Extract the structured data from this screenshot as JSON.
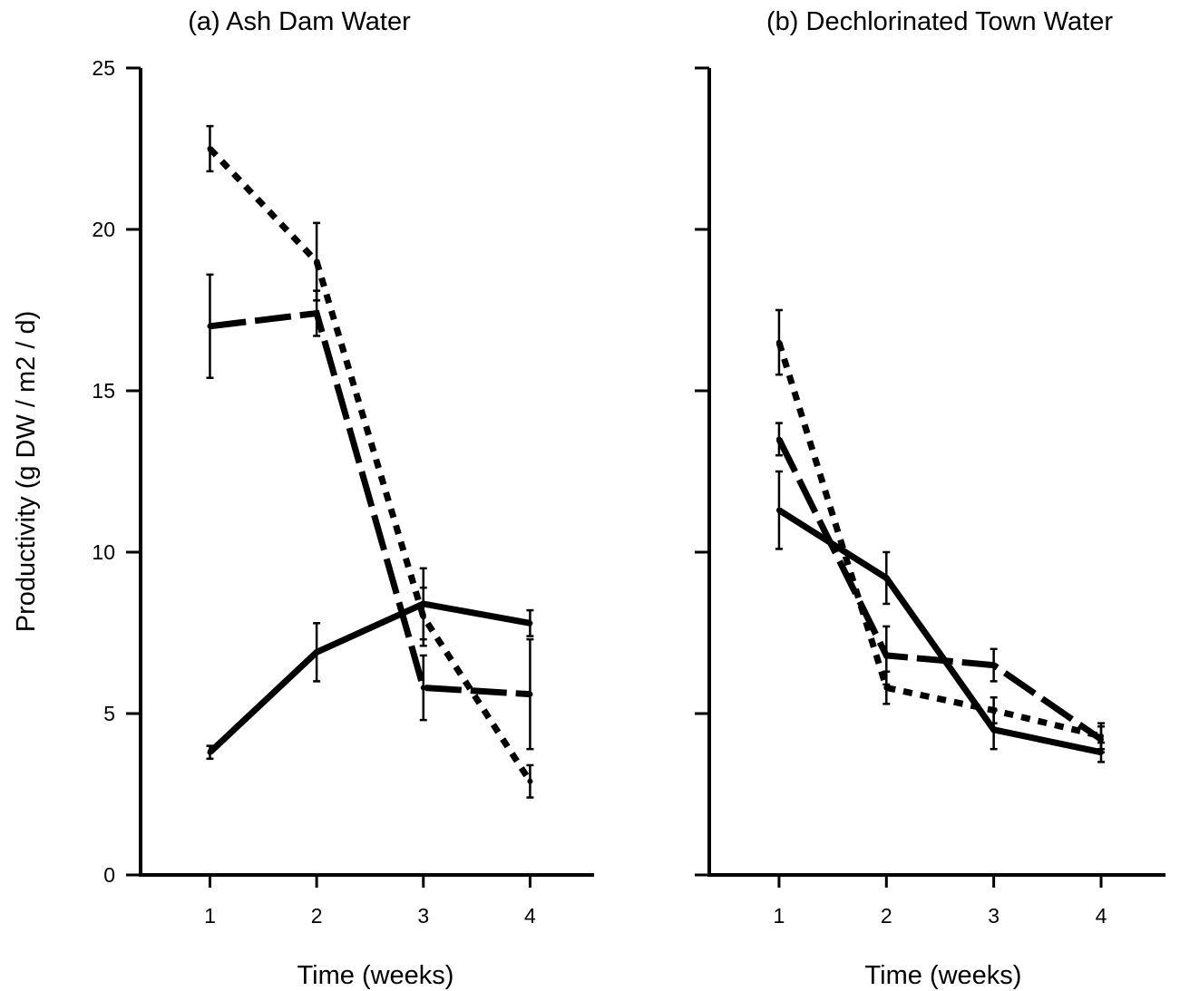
{
  "figure": {
    "ylabel": "Productivity (g DW  / m2 / d)",
    "stroke_color": "#000000",
    "background_color": "#ffffff"
  },
  "chart_data": [
    {
      "type": "line",
      "title": "(a) Ash Dam Water",
      "xlabel": "Time (weeks)",
      "ylabel": "Productivity (g DW  / m2 / d)",
      "x": [
        1,
        2,
        3,
        4
      ],
      "xlim": [
        0.35,
        4.6
      ],
      "ylim": [
        0,
        25
      ],
      "xticks": [
        1,
        2,
        3,
        4
      ],
      "yticks": [
        0,
        5,
        10,
        15,
        20,
        25
      ],
      "grid": false,
      "legend": "none",
      "series": [
        {
          "style": "solid",
          "values": [
            3.8,
            6.9,
            8.4,
            7.8
          ],
          "errors": [
            0.2,
            0.9,
            1.1,
            0.4
          ]
        },
        {
          "style": "dashed",
          "values": [
            17.0,
            17.4,
            5.8,
            5.6
          ],
          "errors": [
            1.6,
            0.7,
            1.0,
            1.7
          ]
        },
        {
          "style": "dotted",
          "values": [
            22.5,
            19.0,
            8.0,
            2.9
          ],
          "errors": [
            0.7,
            1.2,
            0.9,
            0.5
          ]
        }
      ]
    },
    {
      "type": "line",
      "title": "(b) Dechlorinated Town Water",
      "xlabel": "Time (weeks)",
      "x": [
        1,
        2,
        3,
        4
      ],
      "xlim": [
        0.35,
        4.6
      ],
      "ylim": [
        0,
        25
      ],
      "xticks": [
        1,
        2,
        3,
        4
      ],
      "yticks": [
        0,
        5,
        10,
        15,
        20,
        25
      ],
      "grid": false,
      "legend": "none",
      "series": [
        {
          "style": "solid",
          "values": [
            11.3,
            9.2,
            4.5,
            3.8
          ],
          "errors": [
            1.2,
            0.8,
            0.6,
            0.3
          ]
        },
        {
          "style": "dashed",
          "values": [
            13.5,
            6.8,
            6.5,
            4.2
          ],
          "errors": [
            0.5,
            0.9,
            0.5,
            0.4
          ]
        },
        {
          "style": "dotted",
          "values": [
            16.5,
            5.8,
            5.1,
            4.3
          ],
          "errors": [
            1.0,
            0.5,
            0.4,
            0.4
          ]
        }
      ]
    }
  ]
}
